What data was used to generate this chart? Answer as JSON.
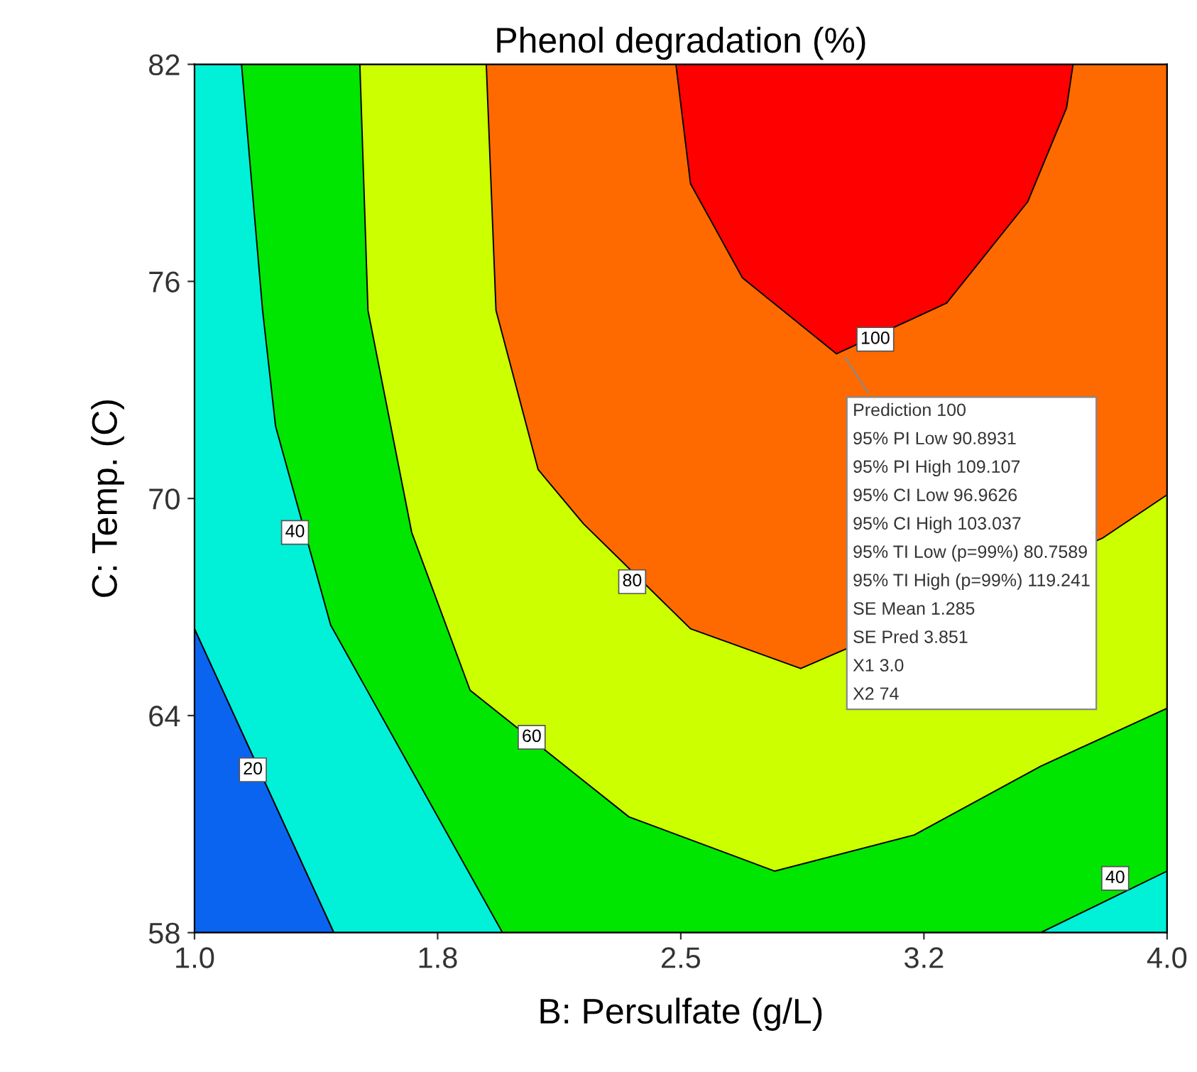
{
  "chart_data": {
    "type": "area",
    "title": "Phenol degradation (%)",
    "xlabel": "B: Persulfate (g/L)",
    "ylabel": "C: Temp. (C)",
    "xlim": [
      1.0,
      4.0
    ],
    "xticks": [
      {
        "value": 1,
        "label": "1.0"
      },
      {
        "value": 1.75,
        "label": "1.8"
      },
      2.5,
      {
        "value": 3.25,
        "label": "3.2"
      },
      {
        "value": 4,
        "label": "4.0"
      }
    ],
    "ylim": [
      58,
      82
    ],
    "yticks": [
      58,
      64,
      70,
      76,
      82
    ],
    "grid": false,
    "legend": false,
    "series": [
      {
        "color": "#0a64f0",
        "x": [
          1.0,
          1.43,
          1.0
        ],
        "values": [
          66.4,
          58,
          58
        ]
      },
      {
        "color": "#00f0d8",
        "x": [
          1.0,
          1.43,
          4.0,
          4.0,
          1.0
        ],
        "values": [
          66.4,
          58,
          58,
          82,
          82
        ]
      },
      {
        "color": "#00e600",
        "x": [
          1.145,
          1.21,
          1.25,
          1.42,
          1.66,
          1.95,
          3.61,
          4.0,
          4.0
        ],
        "values": [
          82,
          75.2,
          72.0,
          66.5,
          null,
          58,
          58,
          59.7,
          82
        ]
      },
      {
        "color": "#ccff00",
        "x": [
          1.51,
          1.535,
          1.67,
          1.85,
          2.2,
          2.34,
          2.79,
          3.22,
          3.61,
          4.0,
          4.0
        ],
        "values": [
          82,
          75.2,
          69.06,
          64.7,
          62.2,
          61.2,
          59.7,
          60.7,
          62.6,
          64.2,
          82
        ]
      },
      {
        "color": "#ff6a00",
        "x": [
          1.9,
          1.93,
          2.06,
          2.2,
          2.53,
          2.87,
          3.22,
          3.51,
          3.8,
          4.0,
          4.0
        ],
        "values": [
          82,
          75.2,
          70.8,
          69.3,
          66.4,
          65.3,
          null,
          null,
          68.9,
          70.1,
          82
        ]
      },
      {
        "color": "#ff0000",
        "x": [
          2.485,
          2.53,
          2.69,
          2.98,
          3.32,
          3.57,
          3.69,
          3.71
        ],
        "values": [
          82,
          78.7,
          76.1,
          74.0,
          75.4,
          78.2,
          80.8,
          82
        ]
      }
    ],
    "annotations": [
      {
        "text": "20",
        "x": 1.18,
        "y": 62.5
      },
      {
        "text": "40",
        "x": 1.31,
        "y": 69.06
      },
      {
        "text": "60",
        "x": 2.04,
        "y": 63.4
      },
      {
        "text": "80",
        "x": 2.35,
        "y": 67.7
      },
      {
        "text": "100",
        "x": 3.1,
        "y": 74.4
      },
      {
        "text": "40",
        "x": 3.84,
        "y": 59.5
      },
      {
        "text": "Prediction 100",
        "x": 3.0,
        "y": 74
      },
      "95% PI Low 90.8931",
      "95% PI High 109.107",
      "95% CI Low 96.9626",
      "95% CI High 103.037",
      "95% TI Low (p=99%) 80.7589",
      "95% TI High (p=99%) 119.241",
      "SE Mean 1.285",
      "SE Pred 3.851",
      "X1 3.0",
      "X2 74"
    ]
  }
}
